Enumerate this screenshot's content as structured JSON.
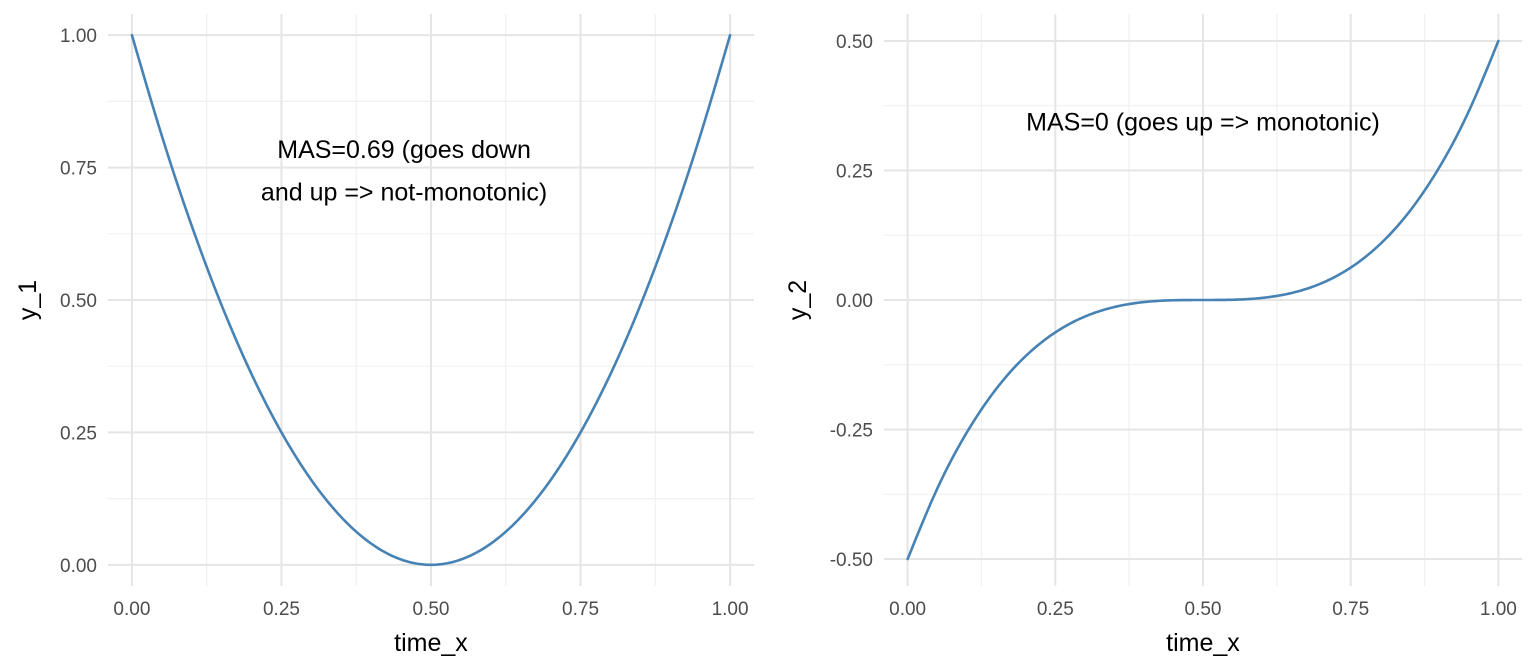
{
  "chart_data": [
    {
      "type": "line",
      "xlabel": "time_x",
      "ylabel": "y_1",
      "xlim": [
        -0.04,
        1.04
      ],
      "ylim": [
        -0.04,
        1.04
      ],
      "x_ticks": [
        "0.00",
        "0.25",
        "0.50",
        "0.75",
        "1.00"
      ],
      "x_tick_values": [
        0,
        0.25,
        0.5,
        0.75,
        1
      ],
      "y_ticks": [
        "0.00",
        "0.25",
        "0.50",
        "0.75",
        "1.00"
      ],
      "y_tick_values": [
        0,
        0.25,
        0.5,
        0.75,
        1
      ],
      "grid": true,
      "line_color": "#4682b4",
      "x": [
        0,
        0.05,
        0.1,
        0.15,
        0.2,
        0.25,
        0.3,
        0.35,
        0.4,
        0.45,
        0.5,
        0.55,
        0.6,
        0.65,
        0.7,
        0.75,
        0.8,
        0.85,
        0.9,
        0.95,
        1
      ],
      "y": [
        1,
        0.81,
        0.64,
        0.49,
        0.36,
        0.25,
        0.16,
        0.09,
        0.04,
        0.01,
        0,
        0.01,
        0.04,
        0.09,
        0.16,
        0.25,
        0.36,
        0.49,
        0.64,
        0.81,
        1
      ],
      "annotation": {
        "lines": [
          "MAS=0.69 (goes down",
          "and up => not-monotonic)"
        ],
        "x": 0.455,
        "y": [
          0.785,
          0.705
        ]
      }
    },
    {
      "type": "line",
      "xlabel": "time_x",
      "ylabel": "y_2",
      "xlim": [
        -0.04,
        1.04
      ],
      "ylim": [
        -0.552,
        0.552
      ],
      "x_ticks": [
        "0.00",
        "0.25",
        "0.50",
        "0.75",
        "1.00"
      ],
      "x_tick_values": [
        0,
        0.25,
        0.5,
        0.75,
        1
      ],
      "y_ticks": [
        "-0.50",
        "-0.25",
        "0.00",
        "0.25",
        "0.50"
      ],
      "y_tick_values": [
        -0.5,
        -0.25,
        0,
        0.25,
        0.5
      ],
      "grid": true,
      "line_color": "#4682b4",
      "x": [
        0,
        0.05,
        0.1,
        0.15,
        0.2,
        0.25,
        0.3,
        0.35,
        0.4,
        0.45,
        0.5,
        0.55,
        0.6,
        0.65,
        0.7,
        0.75,
        0.8,
        0.85,
        0.9,
        0.95,
        1
      ],
      "y": [
        -0.5,
        -0.3645,
        -0.256,
        -0.1715,
        -0.108,
        -0.0625,
        -0.032,
        -0.0135,
        -0.004,
        -0.0005,
        0,
        0.0005,
        0.004,
        0.0135,
        0.032,
        0.0625,
        0.108,
        0.1715,
        0.256,
        0.3645,
        0.5
      ],
      "annotation": {
        "lines": [
          "MAS=0 (goes up => monotonic)"
        ],
        "x": 0.5,
        "y": [
          0.345
        ]
      }
    }
  ]
}
